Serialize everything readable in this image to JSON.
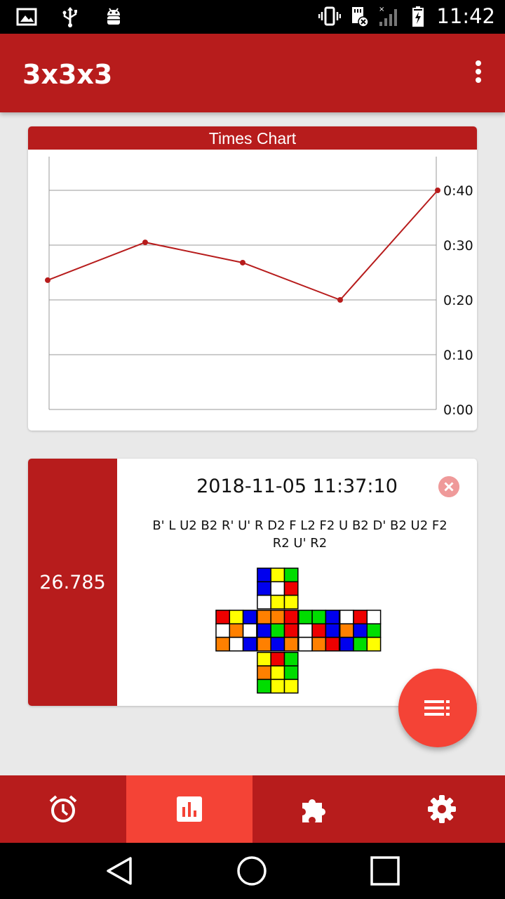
{
  "status_bar": {
    "time": "11:42",
    "icons": [
      "image-icon",
      "usb-icon",
      "android-debug-icon",
      "vibrate-icon",
      "sd-card-icon",
      "signal-icon",
      "battery-charging-icon"
    ]
  },
  "app_bar": {
    "title": "3x3x3",
    "overflow_icon": "more-vert-icon"
  },
  "chart_card": {
    "title": "Times Chart"
  },
  "chart_data": {
    "type": "line",
    "title": "Times Chart",
    "y_axis_position": "right",
    "y_tick_labels": [
      "0:00",
      "0:10",
      "0:20",
      "0:30",
      "0:40"
    ],
    "ylim": [
      0,
      40
    ],
    "grid": true,
    "series": [
      {
        "values": [
          23.6,
          30.5,
          26.8,
          20.0,
          40.0
        ],
        "color": "#b71c1c"
      }
    ]
  },
  "solve": {
    "time": "26.785",
    "date": "2018-11-05 11:37:10",
    "scramble": "B' L U2 B2 R' U' R D2 F L2 F2 U B2 D' B2 U2 F2 R2 U' R2",
    "delete_icon": "close-circle-icon",
    "cube_net": {
      "colors": {
        "W": "#ffffff",
        "Y": "#ffff00",
        "G": "#00dd00",
        "B": "#0000ee",
        "R": "#ee0000",
        "O": "#ff8000"
      },
      "U": [
        [
          "B",
          "Y",
          "G"
        ],
        [
          "B",
          "W",
          "R"
        ],
        [
          "W",
          "Y",
          "Y"
        ]
      ],
      "L": [
        [
          "R",
          "Y",
          "B"
        ],
        [
          "W",
          "O",
          "W"
        ],
        [
          "O",
          "W",
          "B"
        ]
      ],
      "F": [
        [
          "O",
          "O",
          "R"
        ],
        [
          "B",
          "G",
          "R"
        ],
        [
          "O",
          "B",
          "O"
        ]
      ],
      "R": [
        [
          "G",
          "G",
          "B"
        ],
        [
          "W",
          "R",
          "B"
        ],
        [
          "W",
          "O",
          "R"
        ]
      ],
      "B": [
        [
          "W",
          "R",
          "W"
        ],
        [
          "O",
          "B",
          "G"
        ],
        [
          "B",
          "G",
          "Y"
        ]
      ],
      "D": [
        [
          "Y",
          "R",
          "G"
        ],
        [
          "O",
          "Y",
          "G"
        ],
        [
          "G",
          "Y",
          "Y"
        ]
      ]
    }
  },
  "fab": {
    "icon": "list-icon"
  },
  "bottom_nav": {
    "items": [
      {
        "icon": "alarm-icon",
        "active": false
      },
      {
        "icon": "bar-chart-icon",
        "active": true
      },
      {
        "icon": "puzzle-icon",
        "active": false
      },
      {
        "icon": "settings-gear-icon",
        "active": false
      }
    ]
  },
  "system_nav": {
    "icons": [
      "back-icon",
      "home-icon",
      "recents-icon"
    ]
  }
}
